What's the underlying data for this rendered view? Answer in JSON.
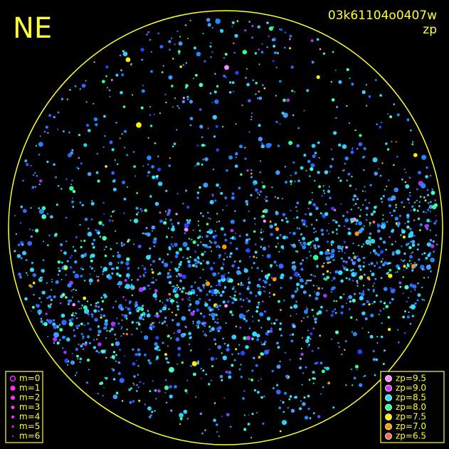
{
  "header": {
    "direction": "NE",
    "frame_id": "03k61104o0407w",
    "color_key": "zp"
  },
  "legend_magnitude": {
    "items": [
      {
        "label": "m=0",
        "hollow": true
      },
      {
        "label": "m=1"
      },
      {
        "label": "m=2"
      },
      {
        "label": "m=3"
      },
      {
        "label": "m=4"
      },
      {
        "label": "m=5"
      },
      {
        "label": "m=6"
      }
    ],
    "color": "#ff33ff"
  },
  "legend_zp": {
    "items": [
      {
        "label": "zp=9.5",
        "color": "#ff88ff"
      },
      {
        "label": "zp=9.0",
        "color": "#dd33ff"
      },
      {
        "label": "zp=8.5",
        "color": "#33ddff"
      },
      {
        "label": "zp=8.0",
        "color": "#33ff99"
      },
      {
        "label": "zp=7.5",
        "color": "#ffee00"
      },
      {
        "label": "zp=7.0",
        "color": "#ff9900"
      },
      {
        "label": "zp=6.5",
        "color": "#ff6666"
      }
    ]
  }
}
